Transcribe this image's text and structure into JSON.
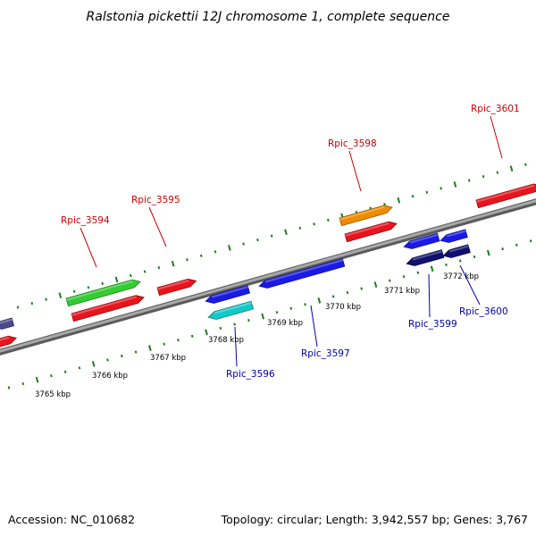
{
  "title": "Ralstonia pickettii 12J chromosome 1, complete sequence",
  "footer": {
    "accession": "Accession: NC_010682",
    "summary": "Topology: circular; Length: 3,942,557 bp; Genes: 3,767"
  },
  "colors": {
    "backbone": "#8a8a8a",
    "tick": "#1a7f1a",
    "plus_label": "#cc0000",
    "minus_label": "#0000aa",
    "red": "#e8141c",
    "green": "#33cc33",
    "orange": "#f08c00",
    "blue": "#1a1ae6",
    "cyan": "#14c8c8",
    "navy": "#101070",
    "slate": "#4a4a8c"
  },
  "scale_labels": [
    {
      "label": "3765 kbp",
      "kbp": 3765
    },
    {
      "label": "3766 kbp",
      "kbp": 3766
    },
    {
      "label": "3767 kbp",
      "kbp": 3767
    },
    {
      "label": "3768 kbp",
      "kbp": 3768
    },
    {
      "label": "3769 kbp",
      "kbp": 3769
    },
    {
      "label": "3770 kbp",
      "kbp": 3770
    },
    {
      "label": "3771 kbp",
      "kbp": 3771
    },
    {
      "label": "3772 kbp",
      "kbp": 3772
    }
  ],
  "gene_labels": [
    {
      "label": "Rpic_3594",
      "strand": "+"
    },
    {
      "label": "Rpic_3595",
      "strand": "+"
    },
    {
      "label": "Rpic_3598",
      "strand": "+"
    },
    {
      "label": "Rpic_3601",
      "strand": "+"
    },
    {
      "label": "Rpic_3596",
      "strand": "-"
    },
    {
      "label": "Rpic_3597",
      "strand": "-"
    },
    {
      "label": "Rpic_3599",
      "strand": "-"
    },
    {
      "label": "Rpic_3600",
      "strand": "-"
    }
  ]
}
